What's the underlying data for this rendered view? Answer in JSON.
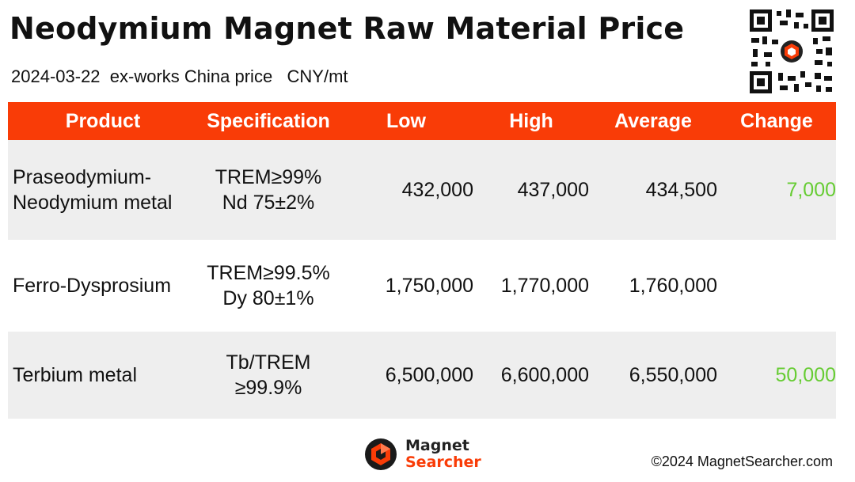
{
  "header": {
    "title": "Neodymium Magnet Raw Material Price",
    "date": "2024-03-22",
    "basis": "ex-works China price",
    "unit": "CNY/mt"
  },
  "table": {
    "columns": [
      "Product",
      "Specification",
      "Low",
      "High",
      "Average",
      "Change"
    ],
    "rows": [
      {
        "product_lines": [
          "Praseodymium-",
          "Neodymium metal"
        ],
        "spec_lines": [
          "TREM≥99%",
          "Nd 75±2%"
        ],
        "low": "432,000",
        "high": "437,000",
        "average": "434,500",
        "change": "7,000"
      },
      {
        "product_lines": [
          "Ferro-Dysprosium"
        ],
        "spec_lines": [
          "TREM≥99.5%",
          "Dy 80±1%"
        ],
        "low": "1,750,000",
        "high": "1,770,000",
        "average": "1,760,000",
        "change": ""
      },
      {
        "product_lines": [
          "Terbium metal"
        ],
        "spec_lines": [
          "Tb/TREM",
          "≥99.9%"
        ],
        "low": "6,500,000",
        "high": "6,600,000",
        "average": "6,550,000",
        "change": "50,000"
      }
    ]
  },
  "footer": {
    "logo_word1": "Magnet",
    "logo_word2": "Searcher",
    "copyright": "©2024 MagnetSearcher.com"
  },
  "colors": {
    "header_bg": "#f93c07",
    "change_up": "#66cc33",
    "row_shade": "#eeeeee"
  }
}
